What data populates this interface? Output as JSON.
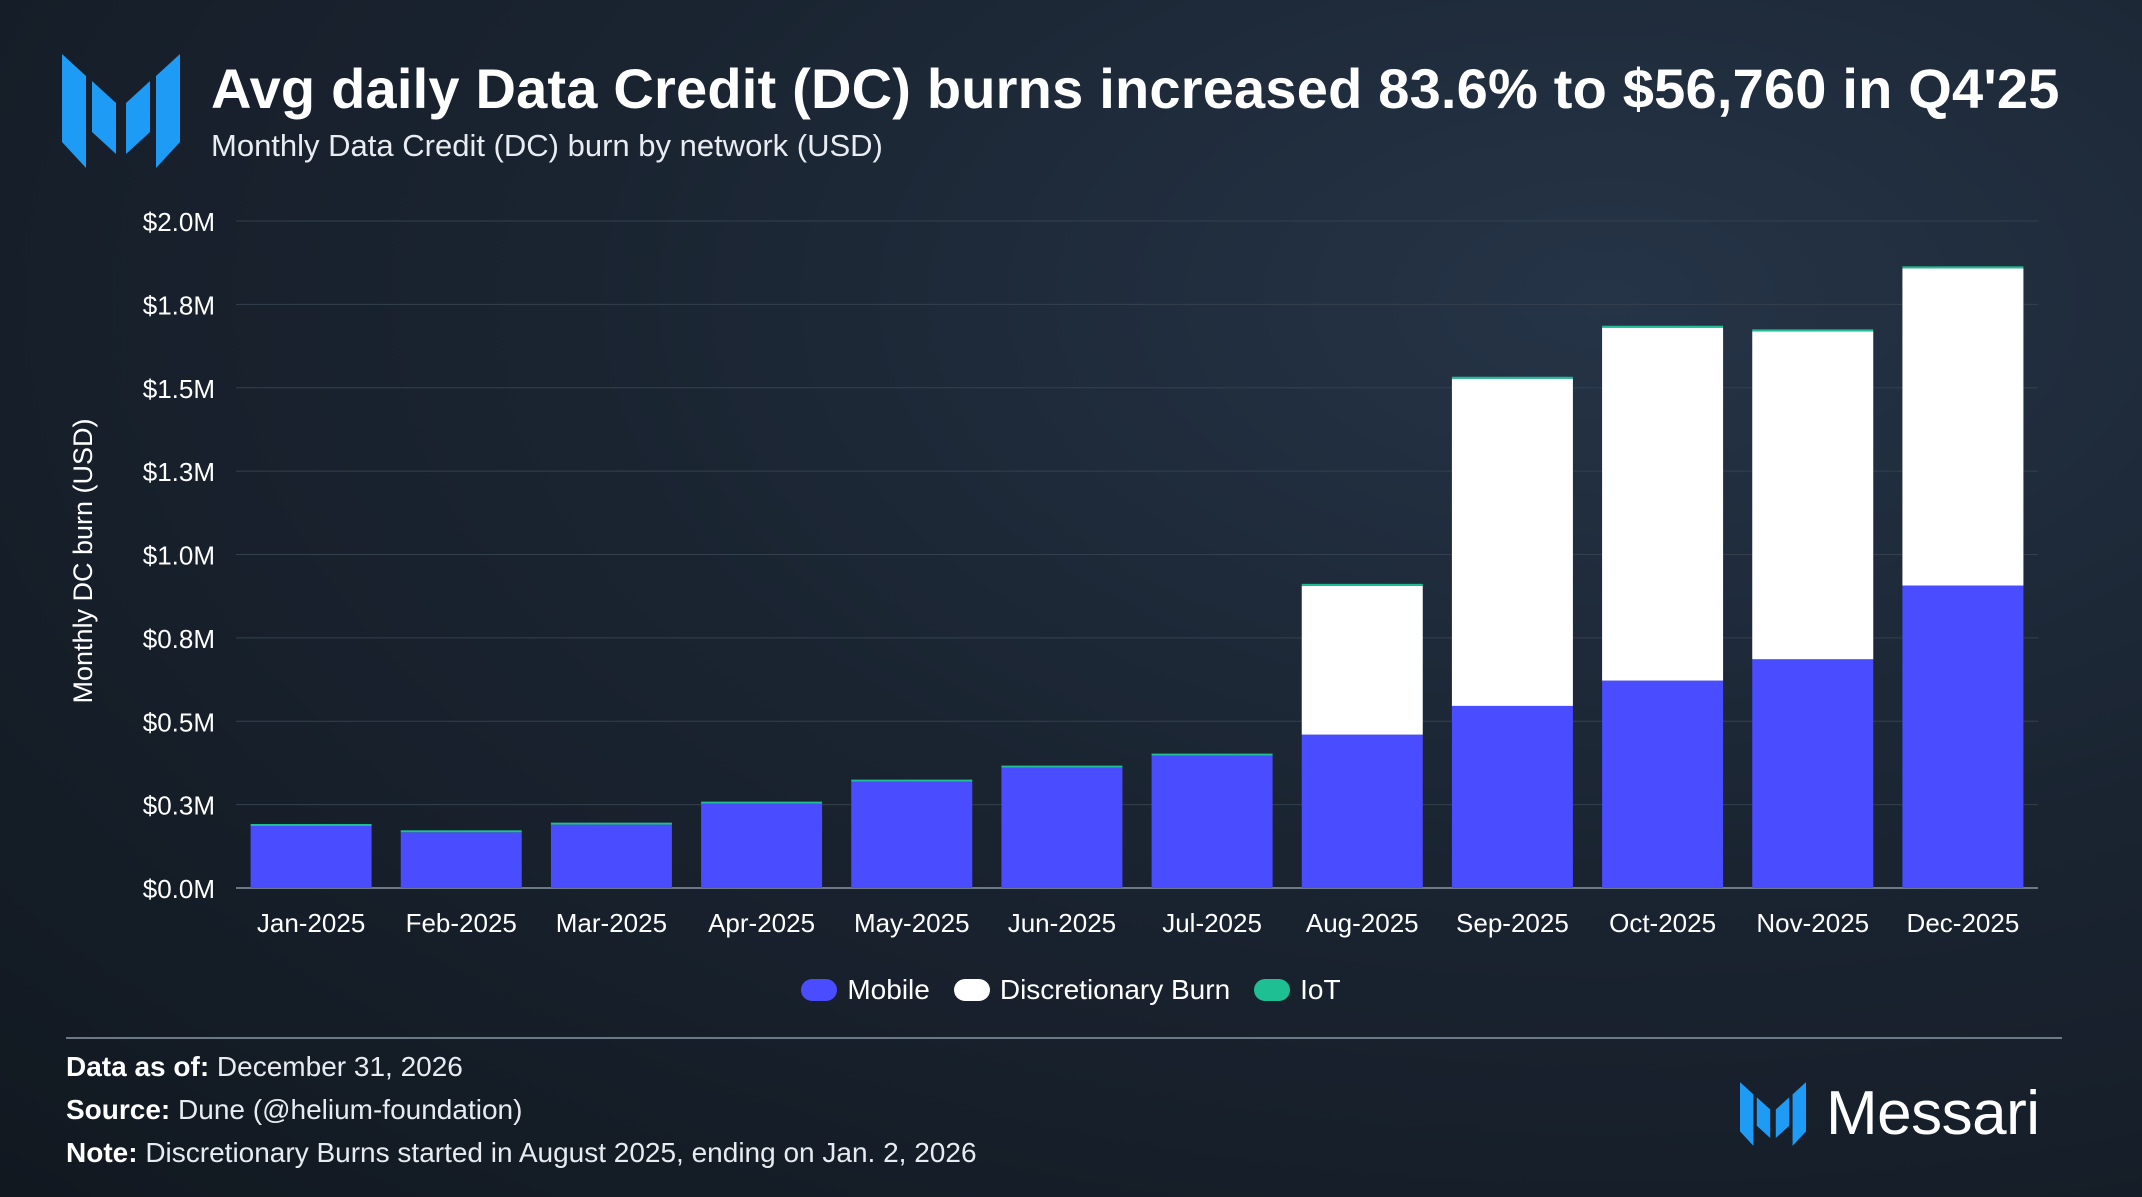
{
  "header": {
    "title": "Avg daily Data Credit (DC) burns increased 83.6% to $56,760 in Q4'25",
    "subtitle": "Monthly Data Credit (DC) burn by network (USD)"
  },
  "colors": {
    "mobile": "#4a4cff",
    "discretionary": "#ffffff",
    "iot": "#1fbf94",
    "brand": "#1e9bf5"
  },
  "chart_data": {
    "type": "bar",
    "stacked": true,
    "title": "Monthly Data Credit (DC) burn by network (USD)",
    "xlabel": "",
    "ylabel": "Monthly DC burn (USD)",
    "ylim": [
      0,
      2000000
    ],
    "yticks": [
      0,
      250000,
      500000,
      750000,
      1000000,
      1250000,
      1500000,
      1750000,
      2000000
    ],
    "ytick_labels": [
      "$0.0M",
      "$0.3M",
      "$0.5M",
      "$0.8M",
      "$1.0M",
      "$1.3M",
      "$1.5M",
      "$1.8M",
      "$2.0M"
    ],
    "categories": [
      "Jan-2025",
      "Feb-2025",
      "Mar-2025",
      "Apr-2025",
      "May-2025",
      "Jun-2025",
      "Jul-2025",
      "Aug-2025",
      "Sep-2025",
      "Oct-2025",
      "Nov-2025",
      "Dec-2025"
    ],
    "series": [
      {
        "name": "Mobile",
        "color": "#4a4cff",
        "values": [
          186000,
          167000,
          190000,
          253000,
          319000,
          361000,
          397000,
          460000,
          546000,
          622000,
          686000,
          907000
        ]
      },
      {
        "name": "Discretionary Burn",
        "color": "#ffffff",
        "values": [
          0,
          0,
          0,
          0,
          0,
          0,
          0,
          446000,
          981000,
          1058000,
          983000,
          951000
        ]
      },
      {
        "name": "IoT",
        "color": "#1fbf94",
        "values": [
          4000,
          4000,
          3000,
          4000,
          4000,
          4000,
          4000,
          4000,
          5000,
          5000,
          5000,
          5000
        ]
      }
    ],
    "legend": "bottom-center",
    "grid": true
  },
  "legend": {
    "items": [
      {
        "label": "Mobile",
        "color": "#4a4cff"
      },
      {
        "label": "Discretionary Burn",
        "color": "#ffffff"
      },
      {
        "label": "IoT",
        "color": "#1fbf94"
      }
    ]
  },
  "footer": {
    "data_as_of_label": "Data as of:",
    "data_as_of_value": " December 31, 2026",
    "source_label": "Source:",
    "source_value": " Dune (@helium-foundation)",
    "note_label": "Note:",
    "note_value": " Discretionary Burns started in August 2025, ending on Jan. 2, 2026"
  },
  "brand": {
    "name": "Messari",
    "logo_icon": "messari-logo-icon"
  }
}
